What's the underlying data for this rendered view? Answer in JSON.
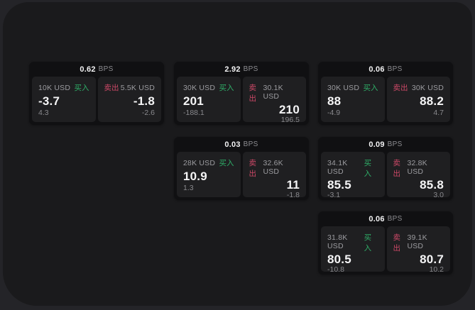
{
  "app": {
    "background_color": "#242428",
    "panel_color": "#1a1a1c",
    "card_color": "#101012",
    "tile_color": "#1f1f21"
  },
  "labels": {
    "bps_unit": "BPS",
    "buy": "买入",
    "sell": "卖出"
  },
  "colors": {
    "buy_green": "#2fae68",
    "sell_red": "#cc4867",
    "value_white": "#f5f5f6",
    "muted_gray": "#89898d"
  },
  "cards": [
    {
      "bps": "0.62",
      "buy": {
        "amount": "10K USD",
        "price": "-3.7",
        "delta": "4.3"
      },
      "sell": {
        "amount": "5.5K USD",
        "price": "-1.8",
        "delta": "-2.6"
      }
    },
    {
      "bps": "2.92",
      "buy": {
        "amount": "30K USD",
        "price": "201",
        "delta": "-188.1"
      },
      "sell": {
        "amount": "30.1K USD",
        "price": "210",
        "delta": "196.5"
      }
    },
    {
      "bps": "0.06",
      "buy": {
        "amount": "30K USD",
        "price": "88",
        "delta": "-4.9"
      },
      "sell": {
        "amount": "30K USD",
        "price": "88.2",
        "delta": "4.7"
      }
    },
    {
      "bps": "0.03",
      "buy": {
        "amount": "28K USD",
        "price": "10.9",
        "delta": "1.3"
      },
      "sell": {
        "amount": "32.6K USD",
        "price": "11",
        "delta": "-1.8"
      }
    },
    {
      "bps": "0.09",
      "buy": {
        "amount": "34.1K USD",
        "price": "85.5",
        "delta": "-3.1"
      },
      "sell": {
        "amount": "32.8K USD",
        "price": "85.8",
        "delta": "3.0"
      }
    },
    {
      "bps": "0.06",
      "buy": {
        "amount": "31.8K USD",
        "price": "80.5",
        "delta": "-10.8"
      },
      "sell": {
        "amount": "39.1K USD",
        "price": "80.7",
        "delta": "10.2"
      }
    }
  ]
}
